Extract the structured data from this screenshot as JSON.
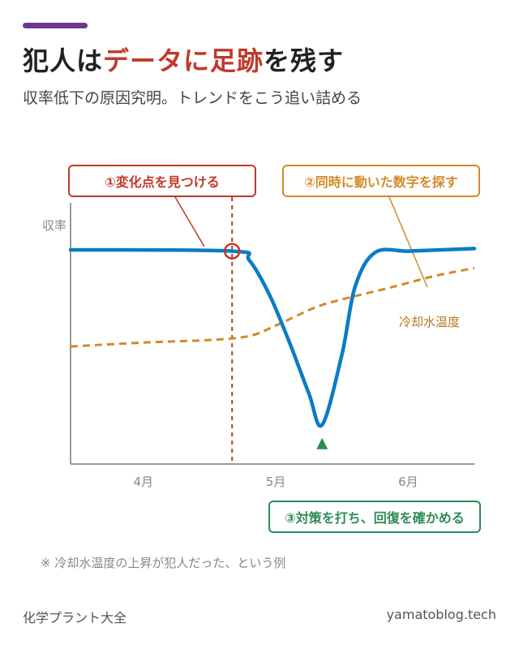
{
  "header": {
    "title_prefix": "犯人は",
    "title_highlight": "データに足跡",
    "title_suffix": "を残す",
    "subtitle": "収率低下の原因究明。トレンドをこう追い詰める"
  },
  "callouts": {
    "change_point": "①変化点を見つける",
    "correlated": "②同時に動いた数字を探す",
    "action": "③対策を打ち、回復を確かめる"
  },
  "note": "※ 冷却水温度の上昇が犯人だった、という例",
  "footer": {
    "left": "化学プラント大全",
    "right": "yamatoblog.tech"
  },
  "colors": {
    "accent": "#6b3a8c",
    "highlight": "#c0392b",
    "yield": "#0a7cc4",
    "coolant": "#d4892a",
    "action": "#2e8b57"
  },
  "chart_data": {
    "type": "line",
    "ylabel": "収率",
    "x_ticks": [
      "4月",
      "5月",
      "6月"
    ],
    "x_tick_positions": [
      0,
      1,
      2
    ],
    "xlim": [
      -0.55,
      2.5
    ],
    "ylim": [
      0,
      100
    ],
    "series": [
      {
        "name": "",
        "style": "solid",
        "x": [
          -0.55,
          0.67,
          0.8,
          0.95,
          1.1,
          1.25,
          1.35,
          1.5,
          1.6,
          1.75,
          2.0,
          2.25,
          2.5
        ],
        "y": [
          82,
          81.5,
          78,
          65,
          47,
          27,
          15,
          42,
          68,
          81,
          81.5,
          82,
          82.5
        ]
      },
      {
        "name": "冷却水温度",
        "style": "dashed",
        "x": [
          -0.55,
          0.0,
          0.5,
          0.8,
          1.0,
          1.3,
          1.5,
          1.9,
          2.2,
          2.5
        ],
        "y": [
          45,
          46.5,
          47.5,
          49,
          53,
          60,
          63,
          68,
          72,
          75
        ]
      }
    ],
    "change_point": {
      "x": 0.67,
      "y": 81.5
    },
    "minimum_point": {
      "x": 1.35,
      "y": 15
    },
    "grid": false
  }
}
